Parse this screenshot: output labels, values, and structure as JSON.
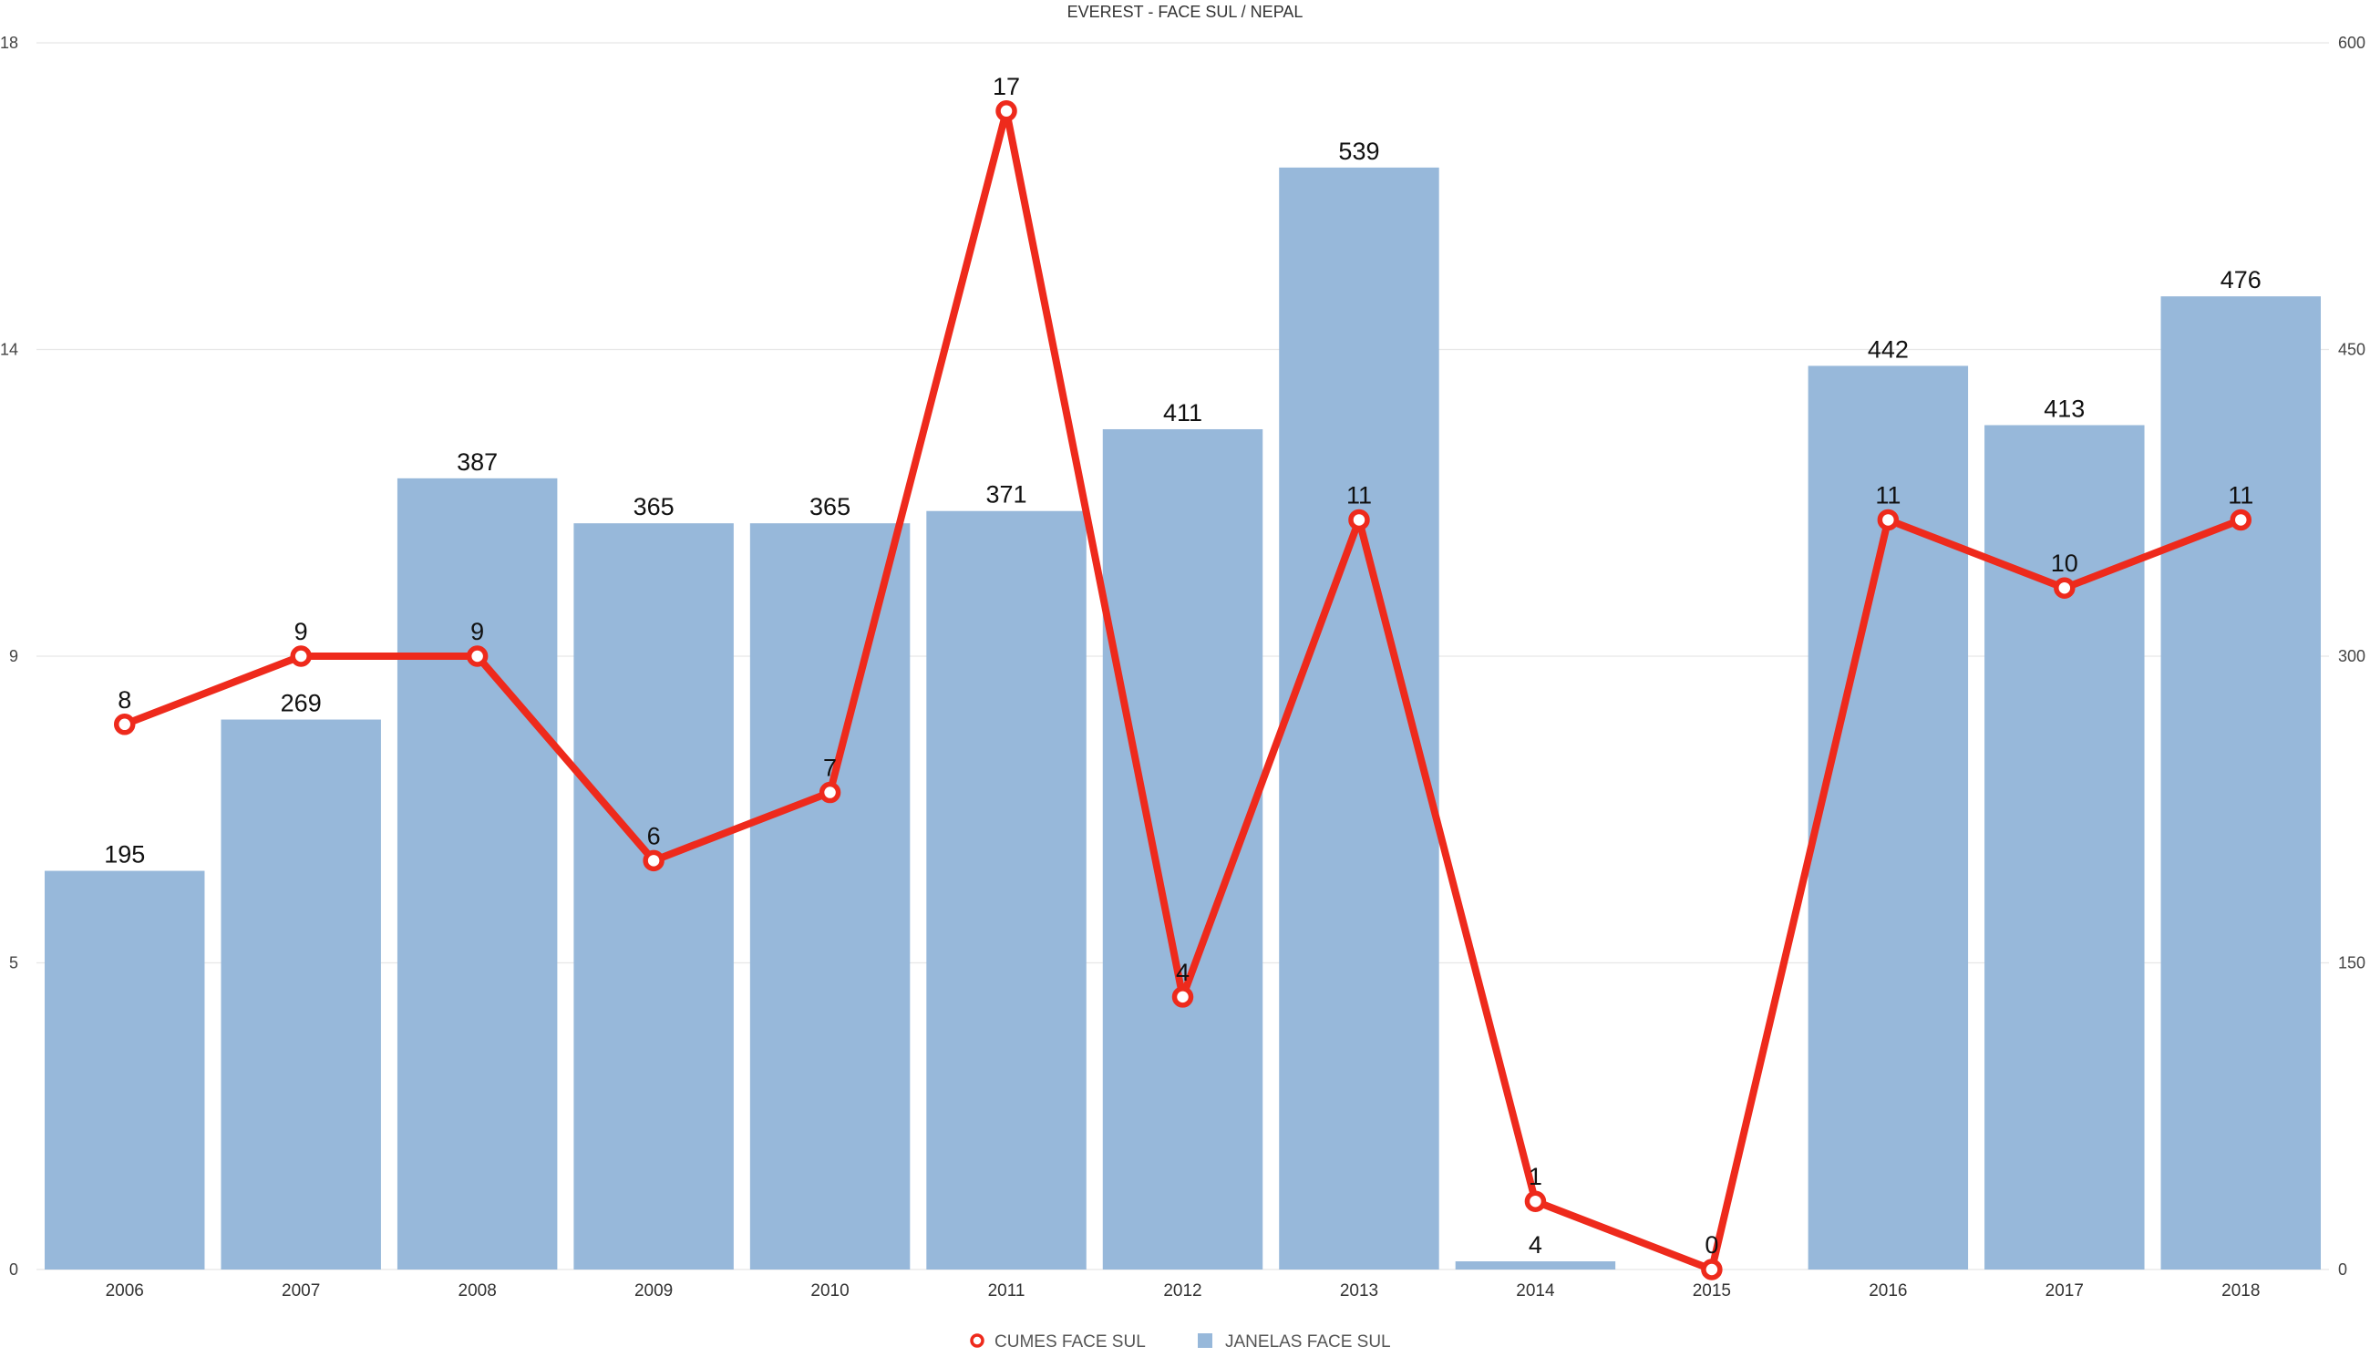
{
  "chart_data": {
    "type": "bar",
    "title": "EVEREST - FACE SUL / NEPAL",
    "categories": [
      "2006",
      "2007",
      "2008",
      "2009",
      "2010",
      "2011",
      "2012",
      "2013",
      "2014",
      "2015",
      "2016",
      "2017",
      "2018"
    ],
    "series": [
      {
        "name": "JANELAS FACE SUL",
        "type": "bar",
        "axis": "right",
        "color": "#97B8DA",
        "values": [
          195,
          269,
          387,
          365,
          365,
          371,
          411,
          539,
          4,
          null,
          442,
          413,
          476
        ],
        "labels": [
          "195",
          "269",
          "387",
          "365",
          "365",
          "371",
          "411",
          "539",
          "4",
          "",
          "442",
          "413",
          "476"
        ]
      },
      {
        "name": "CUMES FACE SUL",
        "type": "line",
        "axis": "left",
        "color": "#EE2A1C",
        "values": [
          8,
          9,
          9,
          6,
          7,
          17,
          4,
          11,
          1,
          0,
          11,
          10,
          11
        ],
        "labels": [
          "8",
          "9",
          "9",
          "6",
          "7",
          "17",
          "4",
          "11",
          "1",
          "0",
          "11",
          "10",
          "11"
        ]
      }
    ],
    "y_left": {
      "ylim": [
        0,
        18
      ],
      "ticks": [
        "0",
        "5",
        "9",
        "14",
        "18"
      ]
    },
    "y_right": {
      "ylim": [
        0,
        600
      ],
      "ticks": [
        "0",
        "150",
        "300",
        "450",
        "600"
      ]
    },
    "grid": true,
    "legend": "bottom-center"
  }
}
